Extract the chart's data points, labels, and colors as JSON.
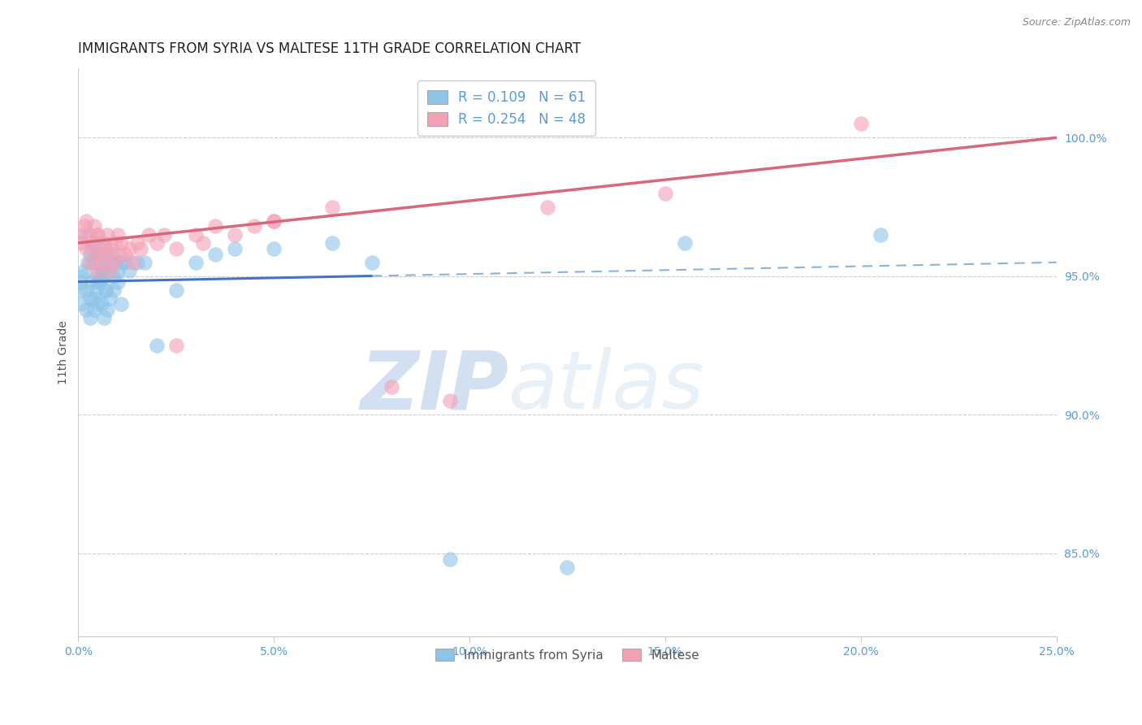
{
  "title": "IMMIGRANTS FROM SYRIA VS MALTESE 11TH GRADE CORRELATION CHART",
  "source": "Source: ZipAtlas.com",
  "xlabel_label": "Immigrants from Syria",
  "ylabel_label": "Maltese",
  "ylabel": "11th Grade",
  "xlim": [
    0.0,
    25.0
  ],
  "ylim": [
    82.0,
    102.5
  ],
  "xticks": [
    0.0,
    5.0,
    10.0,
    15.0,
    20.0,
    25.0
  ],
  "xtick_labels": [
    "0.0%",
    "5.0%",
    "10.0%",
    "15.0%",
    "20.0%",
    "25.0%"
  ],
  "yticks": [
    85.0,
    90.0,
    95.0,
    100.0
  ],
  "ytick_labels": [
    "85.0%",
    "90.0%",
    "95.0%",
    "100.0%"
  ],
  "legend_blue_r": "R = 0.109",
  "legend_blue_n": "N = 61",
  "legend_pink_r": "R = 0.254",
  "legend_pink_n": "N = 48",
  "blue_color": "#8dc4e8",
  "pink_color": "#f4a0b5",
  "blue_line_solid_color": "#4472C4",
  "blue_line_dash_color": "#8ab4d8",
  "pink_line_color": "#d9667a",
  "blue_scatter_x": [
    0.05,
    0.1,
    0.15,
    0.2,
    0.2,
    0.25,
    0.3,
    0.3,
    0.35,
    0.35,
    0.4,
    0.4,
    0.45,
    0.45,
    0.5,
    0.5,
    0.5,
    0.55,
    0.55,
    0.6,
    0.6,
    0.65,
    0.65,
    0.7,
    0.7,
    0.75,
    0.75,
    0.8,
    0.8,
    0.85,
    0.9,
    0.9,
    0.95,
    1.0,
    1.0,
    1.1,
    1.1,
    1.2,
    1.3,
    1.5,
    1.7,
    2.0,
    2.5,
    3.0,
    3.5,
    4.0,
    5.0,
    6.5,
    7.5,
    9.5,
    12.5,
    15.5,
    20.5,
    0.05,
    0.1,
    0.2,
    0.3,
    0.4,
    0.5,
    0.6,
    0.7
  ],
  "blue_scatter_y": [
    94.8,
    95.0,
    95.2,
    96.5,
    94.5,
    95.5,
    95.8,
    94.2,
    96.0,
    94.8,
    95.5,
    93.8,
    96.2,
    94.5,
    95.8,
    95.0,
    94.0,
    95.5,
    94.8,
    95.2,
    94.0,
    95.0,
    93.5,
    96.0,
    94.5,
    95.2,
    93.8,
    95.5,
    94.2,
    95.8,
    95.0,
    94.5,
    95.5,
    95.2,
    94.8,
    95.5,
    94.0,
    95.5,
    95.2,
    95.5,
    95.5,
    92.5,
    94.5,
    95.5,
    95.8,
    96.0,
    96.0,
    96.2,
    95.5,
    84.8,
    84.5,
    96.2,
    96.5,
    94.5,
    94.0,
    93.8,
    93.5,
    94.2,
    94.8,
    95.0,
    94.5
  ],
  "pink_scatter_x": [
    0.05,
    0.1,
    0.15,
    0.2,
    0.2,
    0.3,
    0.3,
    0.35,
    0.4,
    0.45,
    0.5,
    0.5,
    0.55,
    0.6,
    0.65,
    0.7,
    0.75,
    0.8,
    0.85,
    0.9,
    0.95,
    1.0,
    1.0,
    1.1,
    1.2,
    1.3,
    1.4,
    1.5,
    1.6,
    1.8,
    2.0,
    2.2,
    2.5,
    3.0,
    3.2,
    3.5,
    4.0,
    4.5,
    5.0,
    6.5,
    8.0,
    9.5,
    12.0,
    15.0,
    20.0,
    0.5,
    2.5,
    5.0
  ],
  "pink_scatter_y": [
    96.5,
    96.2,
    96.8,
    97.0,
    96.0,
    96.5,
    95.5,
    96.2,
    96.8,
    95.8,
    96.5,
    95.2,
    96.0,
    95.5,
    96.2,
    95.8,
    96.5,
    95.2,
    96.0,
    95.5,
    96.2,
    96.5,
    95.8,
    96.2,
    95.8,
    96.0,
    95.5,
    96.2,
    96.0,
    96.5,
    96.2,
    96.5,
    96.0,
    96.5,
    96.2,
    96.8,
    96.5,
    96.8,
    97.0,
    97.5,
    91.0,
    90.5,
    97.5,
    98.0,
    100.5,
    96.5,
    92.5,
    97.0
  ],
  "blue_line_x_solid_end": 7.5,
  "watermark_zip": "ZIP",
  "watermark_atlas": "atlas",
  "background_color": "#ffffff",
  "grid_color": "#cccccc",
  "axis_color": "#cccccc",
  "tick_color": "#5b9bd5",
  "title_fontsize": 12,
  "axis_label_fontsize": 10
}
